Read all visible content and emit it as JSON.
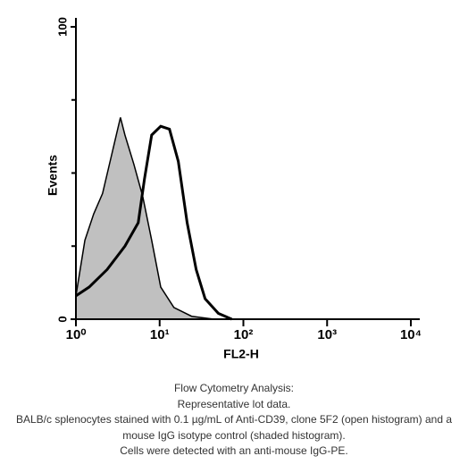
{
  "chart_data": {
    "type": "line",
    "y_label": "Events",
    "x_label": "FL2-H",
    "xlog": true,
    "xlim": [
      1,
      10000
    ],
    "ylim": [
      0,
      100
    ],
    "xticks": [
      {
        "value": 1,
        "label": "10⁰"
      },
      {
        "value": 10,
        "label": "10¹"
      },
      {
        "value": 100,
        "label": "10²"
      },
      {
        "value": 1000,
        "label": "10³"
      },
      {
        "value": 10000,
        "label": "10⁴"
      }
    ],
    "yticks": [
      0,
      100
    ],
    "yminor": [
      25,
      50,
      75
    ],
    "series": [
      {
        "color": "#000000",
        "fill": "#c0c0c0",
        "x": [
          1,
          1.28,
          1.63,
          2.08,
          2.66,
          3.4,
          3.85,
          4.92,
          6.28,
          8.03,
          10.3,
          14.8,
          24.1,
          44.5
        ],
        "values": [
          8,
          27,
          36,
          43,
          56,
          69,
          63,
          53,
          42,
          27,
          11,
          4,
          1,
          0
        ]
      },
      {
        "color": "#000000",
        "fill": "none",
        "x": [
          1,
          1.44,
          2.36,
          3.85,
          5.55,
          6.59,
          8.03,
          10.3,
          13.1,
          16.7,
          21.3,
          27.3,
          34.9,
          50.3,
          72.8
        ],
        "values": [
          8,
          11,
          17,
          25,
          33,
          48,
          63,
          66,
          65,
          54,
          33,
          17,
          7,
          2,
          0
        ]
      }
    ]
  },
  "caption": [
    "Flow Cytometry Analysis:",
    "Representative lot data.",
    "BALB/c splenocytes stained with 0.1 µg/mL of Anti-CD39, clone 5F2 (open histogram) and a",
    "mouse IgG isotype control (shaded histogram).",
    "Cells were detected with an anti-mouse IgG-PE."
  ]
}
